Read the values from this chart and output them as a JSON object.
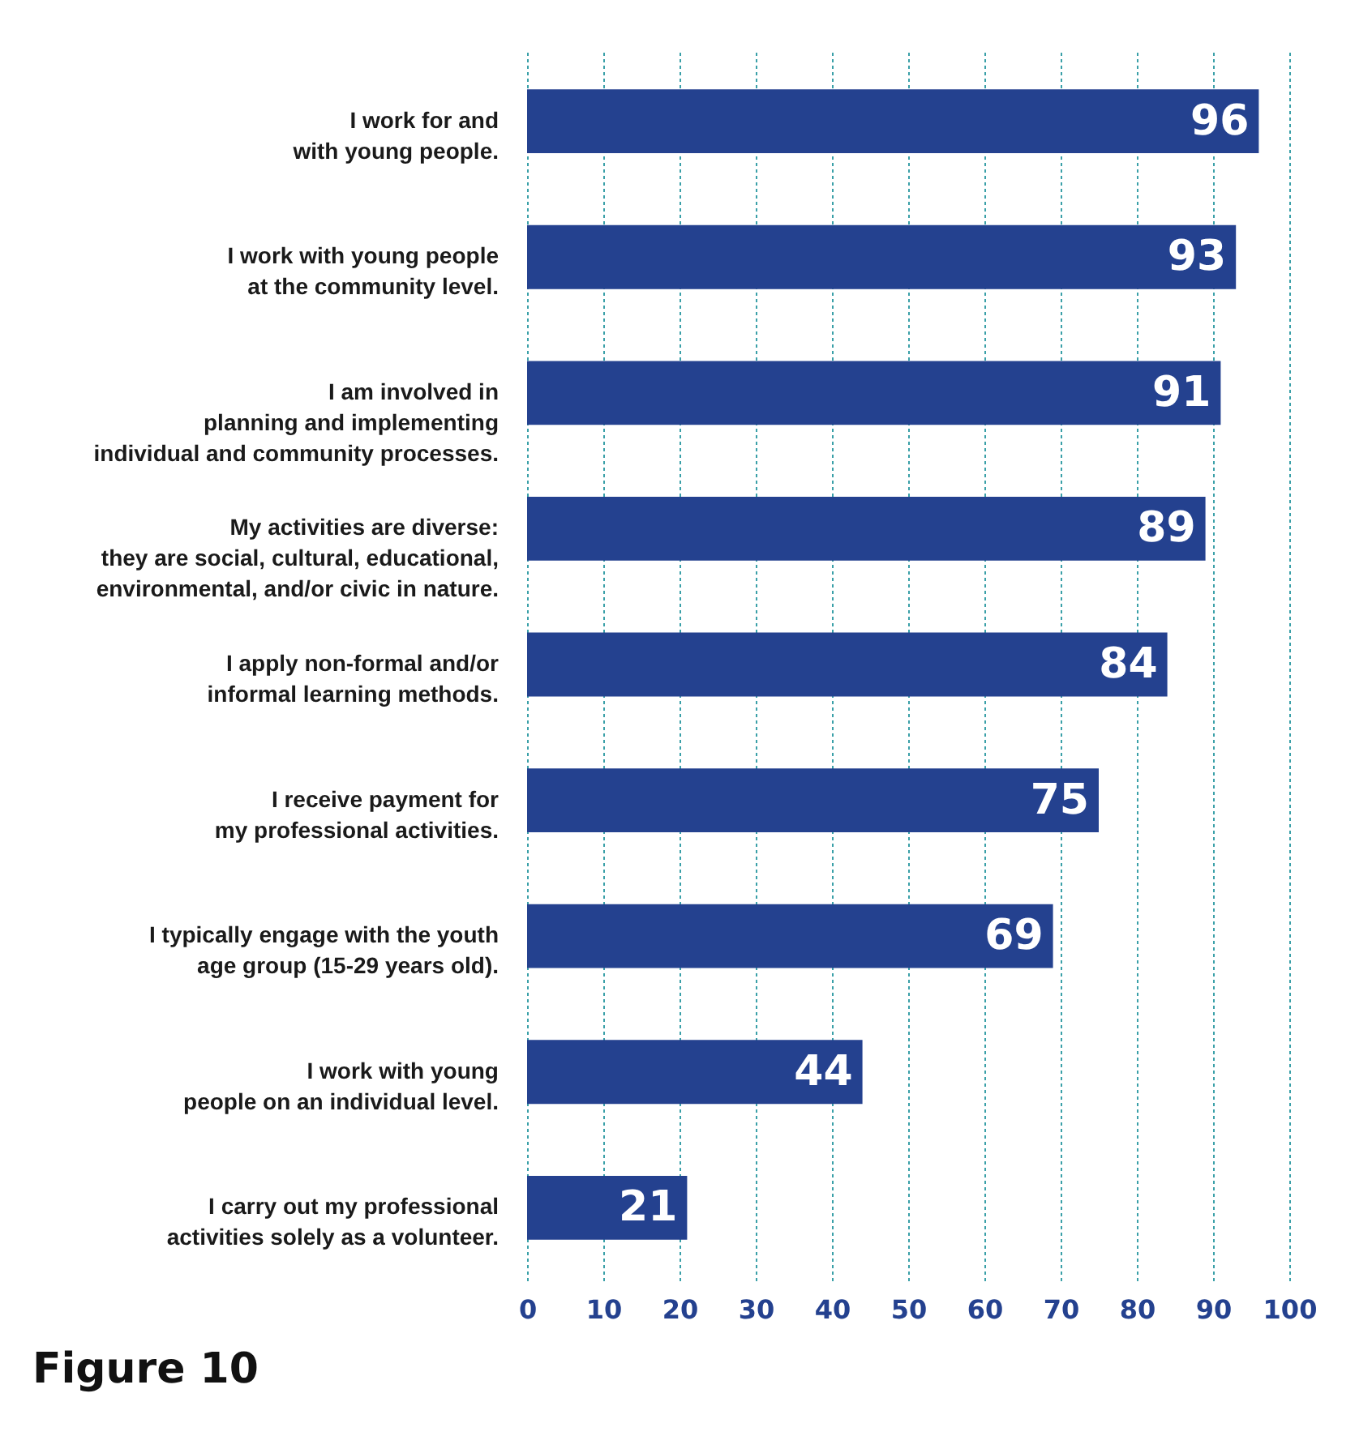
{
  "chart_data": {
    "type": "bar",
    "orientation": "horizontal",
    "categories": [
      "I work for and\nwith young people.",
      "I work with young people\nat the community level.",
      "I am involved in\nplanning and implementing\nindividual and community processes.",
      "My activities are diverse:\nthey are social, cultural, educational,\nenvironmental, and/or civic in nature.",
      "I apply non-formal and/or\ninformal learning methods.",
      "I receive payment for\nmy professional activities.",
      "I typically engage with the youth\nage group (15-29 years old).",
      "I work with young\npeople on an individual level.",
      "I carry out my professional\nactivities solely as a volunteer."
    ],
    "values": [
      96,
      93,
      91,
      89,
      84,
      75,
      69,
      44,
      21
    ],
    "color": "#24418f",
    "data_labels": true,
    "xlim": [
      0,
      100
    ],
    "xticks": [
      0,
      10,
      20,
      30,
      40,
      50,
      60,
      70,
      80,
      90,
      100
    ],
    "grid": "x",
    "annotations": [
      "Figure 10"
    ]
  }
}
